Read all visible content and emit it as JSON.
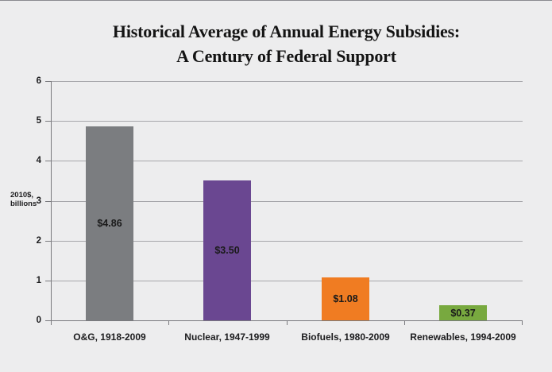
{
  "page": {
    "background": "#ededee",
    "top_border_color": "#8a8a90"
  },
  "title": {
    "line1": "Historical Average of Annual Energy Subsidies:",
    "line2": "A Century of Federal Support"
  },
  "y_axis_title": {
    "line1": "2010$,",
    "line2": "billions"
  },
  "chart_data": {
    "type": "bar",
    "title": "Historical Average of Annual Energy Subsidies: A Century of Federal Support",
    "categories": [
      "O&G, 1918-2009",
      "Nuclear, 1947-1999",
      "Biofuels, 1980-2009",
      "Renewables, 1994-2009"
    ],
    "values": [
      4.86,
      3.5,
      1.08,
      0.37
    ],
    "value_labels": [
      "$4.86",
      "$3.50",
      "$1.08",
      "$0.37"
    ],
    "bar_colors": [
      "#7b7d80",
      "#6a4791",
      "#f07c22",
      "#78a93f"
    ],
    "xlabel": "",
    "ylabel": "2010$, billions",
    "ylim": [
      0,
      6
    ],
    "yticks": [
      0,
      1,
      2,
      3,
      4,
      5,
      6
    ],
    "grid": true,
    "legend": "none",
    "axis_color": "#7a7a7e",
    "gridline_color": "#a7a7ab",
    "label_color": "#1a1a1a"
  }
}
